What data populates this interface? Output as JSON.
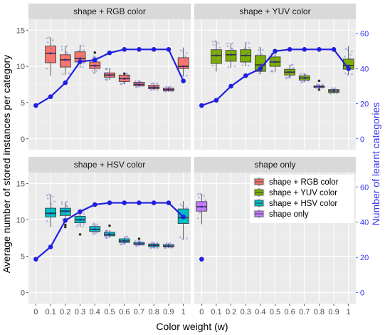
{
  "chart_data": {
    "type": "box+line",
    "xlabel": "Color weight (w)",
    "ylabel_left": "Average number of stored instances per category",
    "ylabel_right": "Number of learnt categories",
    "x_ticks": [
      "0",
      "0.1",
      "0.2",
      "0.3",
      "0.4",
      "0.5",
      "0.6",
      "0.7",
      "0.8",
      "0.9",
      "1"
    ],
    "y_left_ticks": [
      0,
      5,
      10,
      15
    ],
    "y_left_lim": [
      -1.5,
      16.5
    ],
    "y_right_ticks": [
      0,
      20,
      40,
      60
    ],
    "y_right_lim": [
      -6.2,
      68.2
    ],
    "legend": [
      {
        "label": "shape + RGB color",
        "color": "#F8766D"
      },
      {
        "label": "shape + YUV color",
        "color": "#7CAE00"
      },
      {
        "label": "shape + HSV color",
        "color": "#00BFC4"
      },
      {
        "label": "shape only",
        "color": "#C77CFF"
      }
    ],
    "line_color": "#1f1fe0",
    "panels": [
      {
        "title": "shape + RGB color",
        "fill": "#F8766D",
        "boxes": [
          {
            "x": "0.1",
            "q1": 10.5,
            "median": 11.8,
            "q3": 12.8,
            "lo": 8.7,
            "hi": 14.0,
            "outliers": []
          },
          {
            "x": "0.2",
            "q1": 9.9,
            "median": 10.9,
            "q3": 11.6,
            "lo": 8.8,
            "hi": 12.8,
            "outliers": []
          },
          {
            "x": "0.3",
            "q1": 10.6,
            "median": 11.1,
            "q3": 12.0,
            "lo": 9.8,
            "hi": 12.9,
            "outliers": []
          },
          {
            "x": "0.4",
            "q1": 9.7,
            "median": 10.1,
            "q3": 10.6,
            "lo": 9.0,
            "hi": 11.4,
            "outliers": [
              11.9
            ]
          },
          {
            "x": "0.5",
            "q1": 8.5,
            "median": 8.8,
            "q3": 9.1,
            "lo": 8.1,
            "hi": 9.8,
            "outliers": []
          },
          {
            "x": "0.6",
            "q1": 7.9,
            "median": 8.3,
            "q3": 8.8,
            "lo": 7.5,
            "hi": 9.0,
            "outliers": [
              9.0
            ]
          },
          {
            "x": "0.7",
            "q1": 7.3,
            "median": 7.5,
            "q3": 7.8,
            "lo": 7.1,
            "hi": 8.0,
            "outliers": []
          },
          {
            "x": "0.8",
            "q1": 6.9,
            "median": 7.1,
            "q3": 7.4,
            "lo": 6.7,
            "hi": 7.7,
            "outliers": []
          },
          {
            "x": "0.9",
            "q1": 6.6,
            "median": 6.8,
            "q3": 7.0,
            "lo": 6.5,
            "hi": 7.2,
            "outliers": []
          },
          {
            "x": "1",
            "q1": 9.7,
            "median": 10.0,
            "q3": 11.2,
            "lo": 8.6,
            "hi": 12.6,
            "outliers": []
          }
        ],
        "line": [
          {
            "x": "0",
            "y": 19
          },
          {
            "x": "0.1",
            "y": 24
          },
          {
            "x": "0.2",
            "y": 32
          },
          {
            "x": "0.3",
            "y": 44
          },
          {
            "x": "0.4",
            "y": 45
          },
          {
            "x": "0.5",
            "y": 49
          },
          {
            "x": "0.6",
            "y": 51
          },
          {
            "x": "0.7",
            "y": 51
          },
          {
            "x": "0.8",
            "y": 51
          },
          {
            "x": "0.9",
            "y": 51
          },
          {
            "x": "1",
            "y": 33
          }
        ]
      },
      {
        "title": "shape + YUV color",
        "fill": "#7CAE00",
        "boxes": [
          {
            "x": "0.1",
            "q1": 10.4,
            "median": 11.5,
            "q3": 12.3,
            "lo": 9.3,
            "hi": 13.5,
            "outliers": []
          },
          {
            "x": "0.2",
            "q1": 10.7,
            "median": 11.6,
            "q3": 12.2,
            "lo": 9.8,
            "hi": 13.2,
            "outliers": []
          },
          {
            "x": "0.3",
            "q1": 10.6,
            "median": 11.5,
            "q3": 12.3,
            "lo": 10.0,
            "hi": 13.3,
            "outliers": []
          },
          {
            "x": "0.4",
            "q1": 9.3,
            "median": 10.2,
            "q3": 11.5,
            "lo": 8.9,
            "hi": 12.6,
            "outliers": []
          },
          {
            "x": "0.5",
            "q1": 10.0,
            "median": 10.6,
            "q3": 11.3,
            "lo": 9.2,
            "hi": 12.0,
            "outliers": []
          },
          {
            "x": "0.6",
            "q1": 8.8,
            "median": 9.2,
            "q3": 9.6,
            "lo": 8.3,
            "hi": 10.2,
            "outliers": []
          },
          {
            "x": "0.7",
            "q1": 8.1,
            "median": 8.4,
            "q3": 8.7,
            "lo": 7.8,
            "hi": 9.0,
            "outliers": []
          },
          {
            "x": "0.8",
            "q1": 7.1,
            "median": 7.2,
            "q3": 7.3,
            "lo": 7.0,
            "hi": 7.5,
            "outliers": [
              6.8,
              8.0
            ]
          },
          {
            "x": "0.9",
            "q1": 6.4,
            "median": 6.6,
            "q3": 6.8,
            "lo": 6.2,
            "hi": 7.0,
            "outliers": []
          },
          {
            "x": "1",
            "q1": 9.6,
            "median": 10.1,
            "q3": 11.0,
            "lo": 8.8,
            "hi": 12.8,
            "outliers": []
          }
        ],
        "line": [
          {
            "x": "0",
            "y": 19
          },
          {
            "x": "0.1",
            "y": 22
          },
          {
            "x": "0.2",
            "y": 30
          },
          {
            "x": "0.3",
            "y": 36
          },
          {
            "x": "0.4",
            "y": 40
          },
          {
            "x": "0.5",
            "y": 50
          },
          {
            "x": "0.6",
            "y": 51
          },
          {
            "x": "0.7",
            "y": 51
          },
          {
            "x": "0.8",
            "y": 51
          },
          {
            "x": "0.9",
            "y": 51
          },
          {
            "x": "1",
            "y": 40
          }
        ]
      },
      {
        "title": "shape + HSV color",
        "fill": "#00BFC4",
        "boxes": [
          {
            "x": "0.1",
            "q1": 10.4,
            "median": 10.9,
            "q3": 11.6,
            "lo": 9.0,
            "hi": 13.5,
            "outliers": []
          },
          {
            "x": "0.2",
            "q1": 10.6,
            "median": 11.2,
            "q3": 11.6,
            "lo": 10.0,
            "hi": 12.5,
            "outliers": [
              9.0,
              9.3
            ]
          },
          {
            "x": "0.3",
            "q1": 9.6,
            "median": 10.0,
            "q3": 10.5,
            "lo": 9.0,
            "hi": 11.3,
            "outliers": [
              8.0
            ]
          },
          {
            "x": "0.4",
            "q1": 8.4,
            "median": 8.7,
            "q3": 9.1,
            "lo": 8.0,
            "hi": 9.5,
            "outliers": []
          },
          {
            "x": "0.5",
            "q1": 7.8,
            "median": 8.0,
            "q3": 8.3,
            "lo": 7.5,
            "hi": 8.6,
            "outliers": [
              9.2
            ]
          },
          {
            "x": "0.6",
            "q1": 6.9,
            "median": 7.1,
            "q3": 7.4,
            "lo": 6.6,
            "hi": 7.7,
            "outliers": []
          },
          {
            "x": "0.7",
            "q1": 6.6,
            "median": 6.7,
            "q3": 6.9,
            "lo": 6.4,
            "hi": 7.1,
            "outliers": [
              7.4
            ]
          },
          {
            "x": "0.8",
            "q1": 6.3,
            "median": 6.5,
            "q3": 6.7,
            "lo": 6.1,
            "hi": 6.9,
            "outliers": []
          },
          {
            "x": "0.9",
            "q1": 6.3,
            "median": 6.4,
            "q3": 6.6,
            "lo": 6.1,
            "hi": 6.8,
            "outliers": []
          },
          {
            "x": "1",
            "q1": 9.5,
            "median": 10.3,
            "q3": 11.5,
            "lo": 7.3,
            "hi": 12.6,
            "outliers": []
          }
        ],
        "line": [
          {
            "x": "0",
            "y": 19
          },
          {
            "x": "0.1",
            "y": 26
          },
          {
            "x": "0.2",
            "y": 41
          },
          {
            "x": "0.3",
            "y": 46
          },
          {
            "x": "0.4",
            "y": 50
          },
          {
            "x": "0.5",
            "y": 51
          },
          {
            "x": "0.6",
            "y": 51
          },
          {
            "x": "0.7",
            "y": 51
          },
          {
            "x": "0.8",
            "y": 51
          },
          {
            "x": "0.9",
            "y": 51
          },
          {
            "x": "1",
            "y": 43
          }
        ]
      },
      {
        "title": "shape only",
        "fill": "#C77CFF",
        "boxes": [
          {
            "x": "0",
            "q1": 11.2,
            "median": 11.8,
            "q3": 12.5,
            "lo": 9.4,
            "hi": 13.6,
            "outliers": []
          }
        ],
        "line": [
          {
            "x": "0",
            "y": 19
          }
        ]
      }
    ]
  }
}
